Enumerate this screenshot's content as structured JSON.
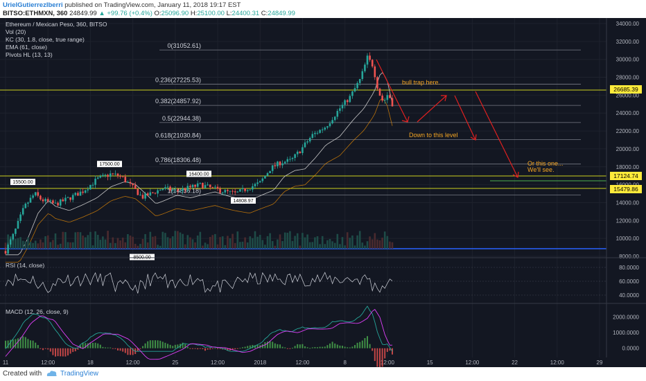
{
  "header": {
    "author": "UrielGutierrezIberri",
    "published": "published on TradingView.com, January 11, 2018 19:17 EST",
    "symbol": "BITSO:ETHMXN, 360",
    "last": "24849.99",
    "change": "▲ +99.76 (+0.4%)",
    "open_label": "O:",
    "open": "25096.90",
    "high_label": "H:",
    "high": "25100.00",
    "low_label": "L:",
    "low": "24400.31",
    "close_label": "C:",
    "close": "24849.99"
  },
  "legend": [
    "Ethereum / Mexican Peso, 360, BITSO",
    "Vol (20)",
    "KC (30, 1.8, close, true range)",
    "EMA (61, close)",
    "Pivots HL (13, 13)"
  ],
  "chart_data": {
    "type": "candlestick",
    "title": "Ethereum / Mexican Peso, 360, BITSO",
    "ylim": [
      8000,
      34000
    ],
    "y_ticks": [
      "34000.00",
      "32000.00",
      "30000.00",
      "28000.00",
      "26000.00",
      "24000.00",
      "22000.00",
      "20000.00",
      "18000.00",
      "16000.00",
      "14000.00",
      "12000.00",
      "10000.00",
      "8000.00"
    ],
    "x_ticks": [
      "11",
      "12:00",
      "18",
      "12:00",
      "25",
      "12:00",
      "2018",
      "12:00",
      "8",
      "12:00",
      "15",
      "12:00",
      "22",
      "12:00",
      "29"
    ],
    "price_labels": [
      {
        "text": "26685.39",
        "value": 26685.39
      },
      {
        "text": "17124.74",
        "value": 17124.74
      },
      {
        "text": "15479.86",
        "value": 15479.86
      }
    ],
    "fibonacci": [
      {
        "label": "0(31052.61)",
        "value": 31052.61
      },
      {
        "label": "0.236(27225.53)",
        "value": 27225.53
      },
      {
        "label": "0.382(24857.92)",
        "value": 24857.92
      },
      {
        "label": "0.5(22944.38)",
        "value": 22944.38
      },
      {
        "label": "0.618(21030.84)",
        "value": 21030.84
      },
      {
        "label": "0.786(18306.48)",
        "value": 18306.48
      },
      {
        "label": "1(14836.18)",
        "value": 14836.18
      }
    ],
    "pivots": [
      {
        "text": "15500.00",
        "value": 15500,
        "dir": "high"
      },
      {
        "text": "17500.00",
        "value": 17500,
        "dir": "high"
      },
      {
        "text": "16400.00",
        "value": 16400,
        "dir": "high"
      },
      {
        "text": "14808.97",
        "value": 14808.97,
        "dir": "low"
      },
      {
        "text": "8500.00",
        "value": 8500,
        "dir": "low"
      }
    ],
    "annotations": [
      "bull trap here.",
      "Down to this level",
      "Or this one...",
      "We'll see."
    ],
    "rsi": {
      "label": "RSI (14, close)",
      "ticks": [
        "80.0000",
        "60.0000",
        "40.0000"
      ],
      "ylim": [
        30,
        90
      ]
    },
    "macd": {
      "label": "MACD (12, 26, close, 9)",
      "ticks": [
        "2000.0000",
        "1000.0000",
        "0.0000"
      ],
      "ylim": [
        -500,
        2600
      ]
    },
    "colors": {
      "up": "#26a69a",
      "down": "#ef5350",
      "fib": "#787b86",
      "annotation": "#f5a623",
      "arrow": "#e02020",
      "support": "#4caf50",
      "background": "#131722"
    }
  },
  "footer": {
    "created_with": "Created with",
    "brand": "TradingView"
  }
}
